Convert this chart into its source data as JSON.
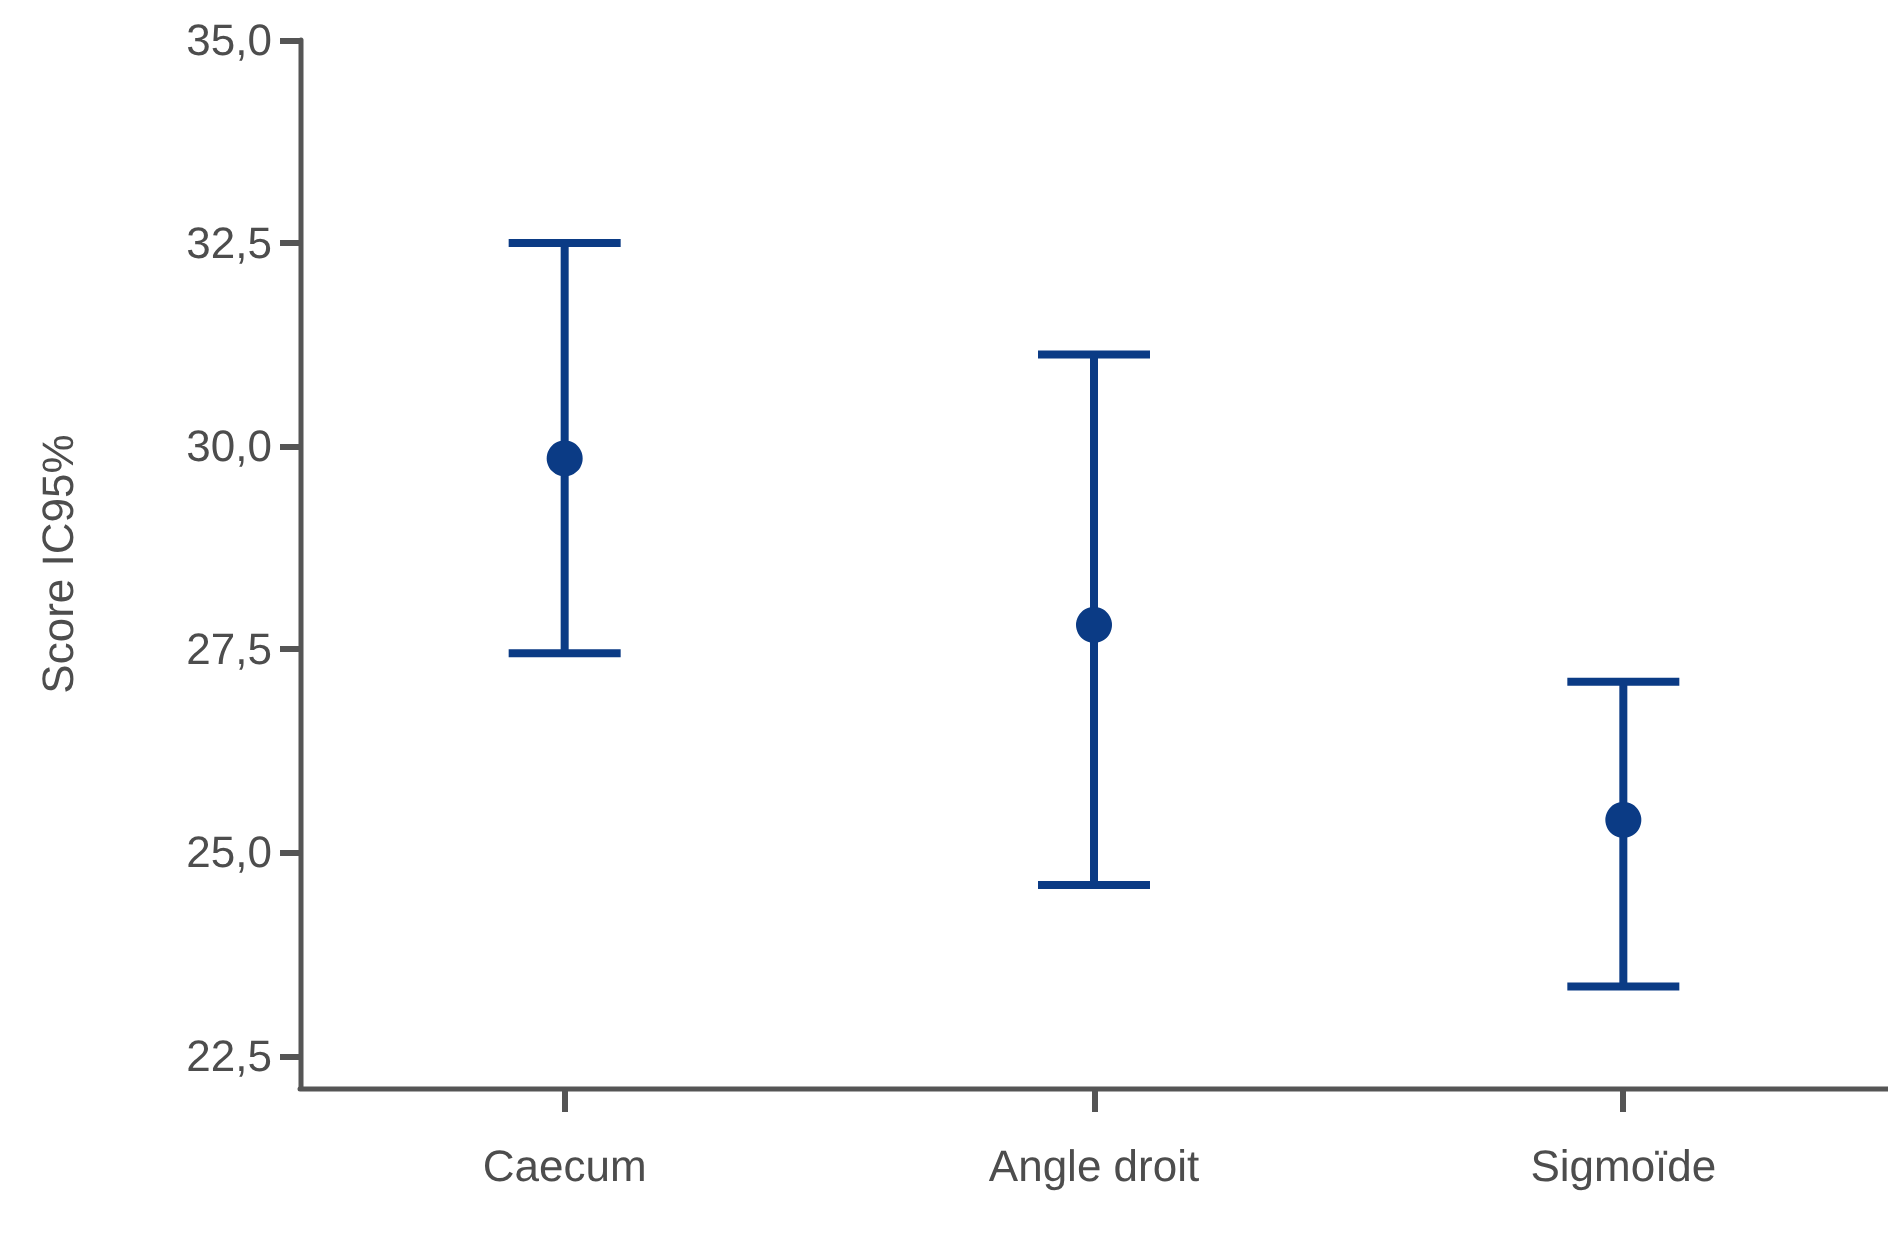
{
  "chart_data": {
    "type": "scatter",
    "ylabel": "Score IC95%",
    "categories": [
      "Caecum",
      "Angle droit",
      "Sigmoïde"
    ],
    "color": "#0b3b85",
    "values": [
      29.85,
      27.8,
      25.4
    ],
    "errors": [
      [
        27.45,
        32.5
      ],
      [
        24.6,
        31.13
      ],
      [
        23.35,
        27.1
      ]
    ],
    "ylim": [
      22.1,
      35
    ],
    "yticks": [
      {
        "value": 22.5,
        "label": "22,5"
      },
      {
        "value": 25,
        "label": "25,0"
      },
      {
        "value": 27.5,
        "label": "27,5"
      },
      {
        "value": 30,
        "label": "30,0"
      },
      {
        "value": 32.5,
        "label": "32,5"
      },
      {
        "value": 35,
        "label": "35,0"
      }
    ],
    "marker": "circle",
    "grid": false
  }
}
